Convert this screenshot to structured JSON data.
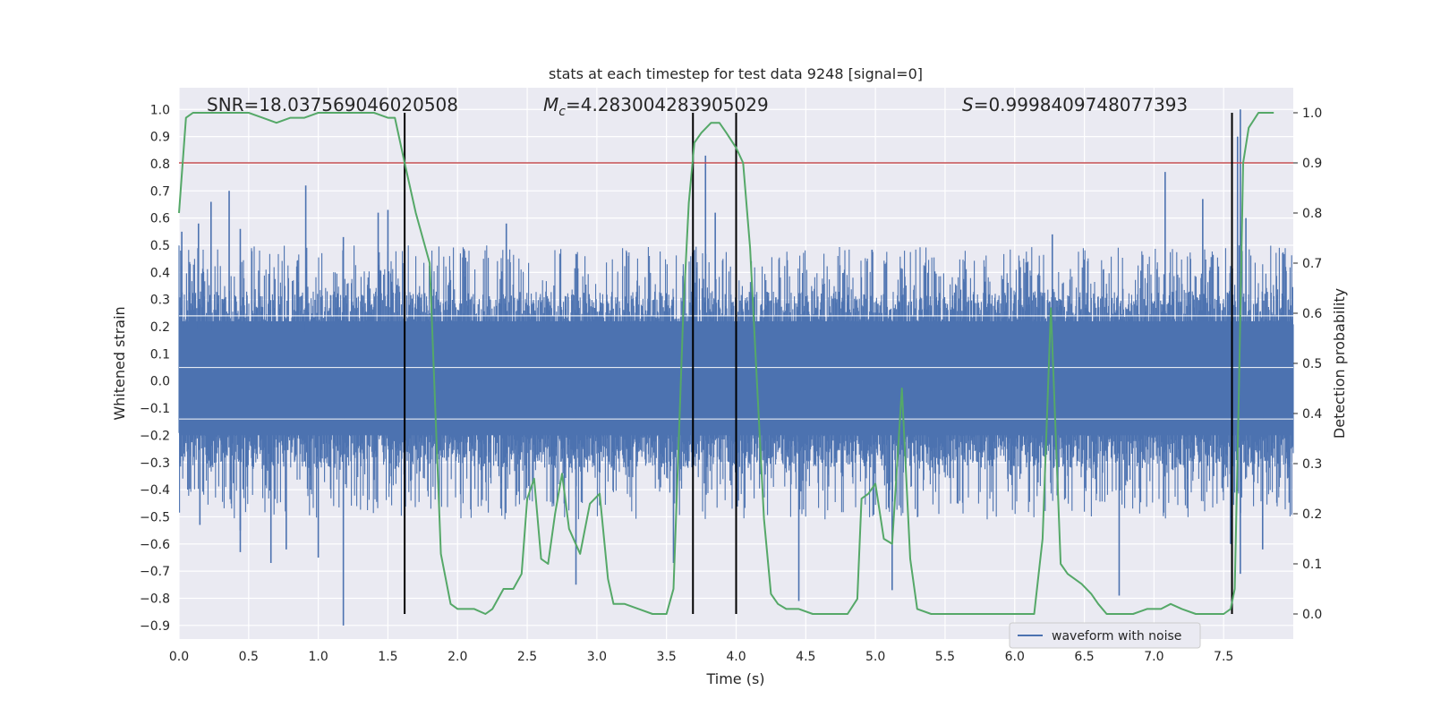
{
  "chart_data": {
    "type": "line",
    "title": "stats at each timestep for test data 9248 [signal=0]",
    "xlabel": "Time (s)",
    "ylabel": "Whitened strain",
    "ylabel_right": "Detection probability",
    "xlim": [
      0.0,
      8.0
    ],
    "ylim": [
      -0.95,
      1.08
    ],
    "ylim_right": [
      -0.05,
      1.05
    ],
    "x_ticks": [
      "0.0",
      "0.5",
      "1.0",
      "1.5",
      "2.0",
      "2.5",
      "3.0",
      "3.5",
      "4.0",
      "4.5",
      "5.0",
      "5.5",
      "6.0",
      "6.5",
      "7.0",
      "7.5"
    ],
    "y_ticks": [
      "−0.9",
      "−0.8",
      "−0.7",
      "−0.6",
      "−0.5",
      "−0.4",
      "−0.3",
      "−0.2",
      "−0.1",
      "0.0",
      "0.1",
      "0.2",
      "0.3",
      "0.4",
      "0.5",
      "0.6",
      "0.7",
      "0.8",
      "0.9",
      "1.0"
    ],
    "y_ticks_right": [
      "0.0",
      "0.1",
      "0.2",
      "0.3",
      "0.4",
      "0.5",
      "0.6",
      "0.7",
      "0.8",
      "0.9",
      "1.0"
    ],
    "grid": true,
    "legend_position": "lower-right",
    "annotations": {
      "snr": "SNR=18.037569046020508",
      "mc_symbol": "M",
      "mc_sub": "c",
      "mc_value": "=4.283004283905029",
      "s_symbol": "S",
      "s_value": "=0.9998409748077393"
    },
    "series": [
      {
        "name": "waveform with noise",
        "kind": "noise",
        "color": "#4c72b0",
        "axis": "left",
        "bulk_range": [
          -0.32,
          0.33
        ],
        "spike_peaks": [
          {
            "x": 0.02,
            "y": 0.55
          },
          {
            "x": 0.14,
            "y": 0.58
          },
          {
            "x": 0.15,
            "y": -0.53
          },
          {
            "x": 0.23,
            "y": 0.66
          },
          {
            "x": 0.36,
            "y": 0.7
          },
          {
            "x": 0.44,
            "y": -0.55
          },
          {
            "x": 0.44,
            "y": 0.56
          },
          {
            "x": 0.44,
            "y": -0.63
          },
          {
            "x": 0.66,
            "y": -0.67
          },
          {
            "x": 0.77,
            "y": -0.62
          },
          {
            "x": 0.91,
            "y": 0.72
          },
          {
            "x": 1.0,
            "y": -0.65
          },
          {
            "x": 1.18,
            "y": -0.9
          },
          {
            "x": 1.18,
            "y": 0.53
          },
          {
            "x": 1.43,
            "y": 0.62
          },
          {
            "x": 1.5,
            "y": 0.63
          },
          {
            "x": 2.35,
            "y": 0.58
          },
          {
            "x": 2.85,
            "y": -0.75
          },
          {
            "x": 3.55,
            "y": -0.67
          },
          {
            "x": 3.78,
            "y": 0.83
          },
          {
            "x": 3.85,
            "y": 0.62
          },
          {
            "x": 4.45,
            "y": -0.81
          },
          {
            "x": 5.12,
            "y": -0.77
          },
          {
            "x": 6.27,
            "y": 0.54
          },
          {
            "x": 6.75,
            "y": -0.79
          },
          {
            "x": 7.08,
            "y": 0.77
          },
          {
            "x": 7.35,
            "y": 0.67
          },
          {
            "x": 7.55,
            "y": -0.6
          },
          {
            "x": 7.6,
            "y": 0.9
          },
          {
            "x": 7.62,
            "y": 1.0
          },
          {
            "x": 7.62,
            "y": -0.71
          },
          {
            "x": 7.66,
            "y": 0.6
          },
          {
            "x": 7.78,
            "y": -0.62
          }
        ]
      },
      {
        "name": "detection probability",
        "kind": "line",
        "color": "#55a868",
        "axis": "right",
        "x": [
          0.0,
          0.05,
          0.1,
          0.3,
          0.5,
          0.6,
          0.7,
          0.8,
          0.9,
          1.0,
          1.2,
          1.4,
          1.5,
          1.55,
          1.62,
          1.7,
          1.8,
          1.88,
          1.95,
          2.0,
          2.07,
          2.12,
          2.2,
          2.25,
          2.33,
          2.4,
          2.46,
          2.5,
          2.55,
          2.6,
          2.65,
          2.7,
          2.75,
          2.8,
          2.88,
          2.95,
          3.02,
          3.08,
          3.12,
          3.2,
          3.3,
          3.4,
          3.45,
          3.5,
          3.55,
          3.62,
          3.66,
          3.7,
          3.75,
          3.82,
          3.88,
          3.93,
          4.0,
          4.05,
          4.1,
          4.2,
          4.25,
          4.3,
          4.36,
          4.45,
          4.55,
          4.65,
          4.75,
          4.8,
          4.87,
          4.9,
          4.95,
          5.0,
          5.06,
          5.12,
          5.19,
          5.25,
          5.3,
          5.4,
          5.5,
          5.6,
          5.8,
          6.0,
          6.14,
          6.2,
          6.26,
          6.33,
          6.38,
          6.48,
          6.55,
          6.6,
          6.66,
          6.75,
          6.85,
          6.95,
          7.05,
          7.12,
          7.2,
          7.3,
          7.45,
          7.5,
          7.55,
          7.58,
          7.61,
          7.64,
          7.68,
          7.75,
          7.86
        ],
        "y": [
          0.8,
          0.99,
          1.0,
          1.0,
          1.0,
          0.99,
          0.98,
          0.99,
          0.99,
          1.0,
          1.0,
          1.0,
          0.99,
          0.99,
          0.9,
          0.8,
          0.7,
          0.12,
          0.02,
          0.01,
          0.01,
          0.01,
          0.0,
          0.01,
          0.05,
          0.05,
          0.08,
          0.23,
          0.27,
          0.11,
          0.1,
          0.2,
          0.28,
          0.17,
          0.12,
          0.22,
          0.24,
          0.07,
          0.02,
          0.02,
          0.01,
          0.0,
          0.0,
          0.0,
          0.05,
          0.6,
          0.82,
          0.94,
          0.96,
          0.98,
          0.98,
          0.96,
          0.93,
          0.9,
          0.73,
          0.19,
          0.04,
          0.02,
          0.01,
          0.01,
          0.0,
          0.0,
          0.0,
          0.0,
          0.03,
          0.23,
          0.24,
          0.26,
          0.15,
          0.14,
          0.45,
          0.11,
          0.01,
          0.0,
          0.0,
          0.0,
          0.0,
          0.0,
          0.0,
          0.15,
          0.61,
          0.1,
          0.08,
          0.06,
          0.04,
          0.02,
          0.0,
          0.0,
          0.0,
          0.01,
          0.01,
          0.02,
          0.01,
          0.0,
          0.0,
          0.0,
          0.01,
          0.05,
          0.45,
          0.9,
          0.97,
          1.0,
          1.0
        ]
      }
    ],
    "threshold": {
      "axis": "right",
      "y": 0.9,
      "color": "#c44e52"
    },
    "vertical_markers": {
      "x": [
        1.62,
        3.69,
        4.0,
        7.56
      ],
      "color": "#000000"
    }
  }
}
